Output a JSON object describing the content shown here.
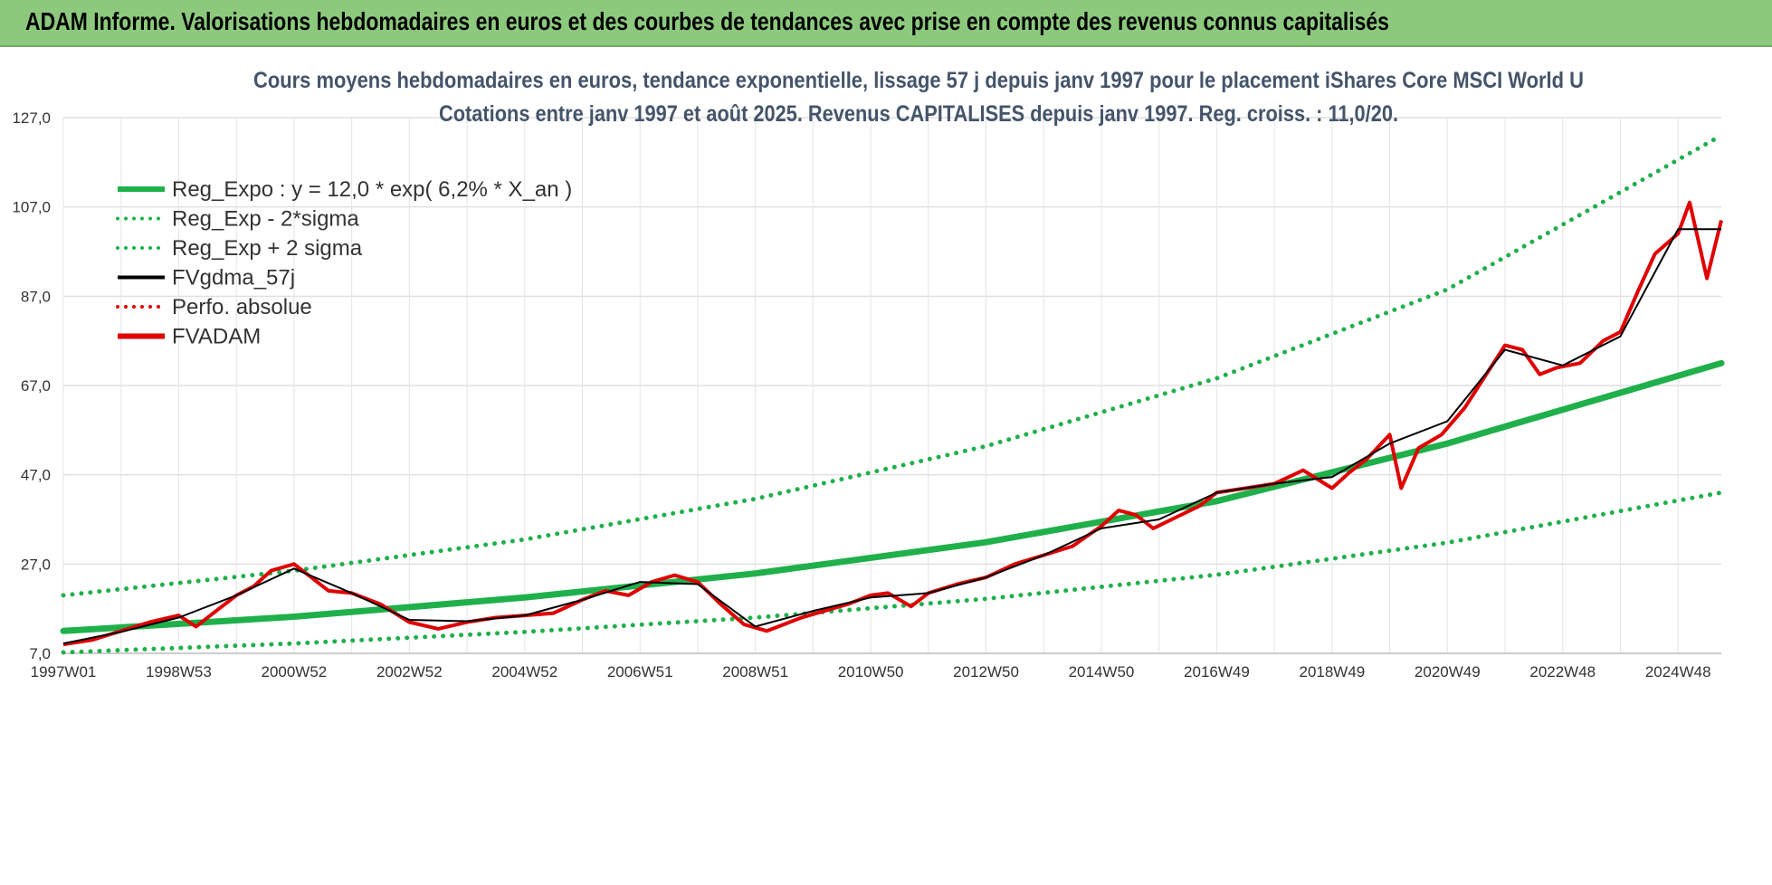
{
  "banner": {
    "title": "ADAM Informe. Valorisations hebdomadaires en euros et des courbes de tendances avec prise en compte des revenus connus capitalisés"
  },
  "colors": {
    "banner_bg": "#8cc97d",
    "trend": "#1fb04b",
    "band": "#1fb04b",
    "fvgdma": "#000000",
    "perfo": "#e00000",
    "fvadam": "#e00000",
    "title_text": "#44546a"
  },
  "chart_data": {
    "type": "line",
    "title_lines": [
      "Cours moyens hebdomadaires en euros, tendance exponentielle, lissage 57 j depuis janv 1997 pour le placement iShares Core MSCI World U",
      "Cotations entre janv 1997 et août 2025. Revenus CAPITALISES depuis janv 1997. Reg. croiss. : 11,0/20."
    ],
    "x_range": [
      1997.0,
      2025.75
    ],
    "ylim": [
      7.0,
      127.0
    ],
    "y_ticks": [
      "7,0",
      "27,0",
      "47,0",
      "67,0",
      "87,0",
      "107,0",
      "127,0"
    ],
    "y_tick_values": [
      7,
      27,
      47,
      67,
      87,
      107,
      127
    ],
    "x_ticks": [
      {
        "label": "1997W01",
        "x": 1997.0
      },
      {
        "label": "1998W53",
        "x": 1999.0
      },
      {
        "label": "2000W52",
        "x": 2001.0
      },
      {
        "label": "2002W52",
        "x": 2003.0
      },
      {
        "label": "2004W52",
        "x": 2005.0
      },
      {
        "label": "2006W51",
        "x": 2007.0
      },
      {
        "label": "2008W51",
        "x": 2009.0
      },
      {
        "label": "2010W50",
        "x": 2011.0
      },
      {
        "label": "2012W50",
        "x": 2013.0
      },
      {
        "label": "2014W50",
        "x": 2015.0
      },
      {
        "label": "2016W49",
        "x": 2017.0
      },
      {
        "label": "2018W49",
        "x": 2019.0
      },
      {
        "label": "2020W49",
        "x": 2021.0
      },
      {
        "label": "2022W48",
        "x": 2023.0
      },
      {
        "label": "2024W48",
        "x": 2025.0
      }
    ],
    "legend": [
      {
        "label": "Reg_Expo : y = 12,0 * exp( 6,2% *  X_an )",
        "style": "solid-thick",
        "color": "#1fb04b"
      },
      {
        "label": "Reg_Exp - 2*sigma",
        "style": "dotted",
        "color": "#1fb04b"
      },
      {
        "label": "Reg_Exp + 2 sigma",
        "style": "dotted",
        "color": "#1fb04b"
      },
      {
        "label": "FVgdma_57j",
        "style": "solid",
        "color": "#000000"
      },
      {
        "label": "Perfo. absolue",
        "style": "dotted",
        "color": "#e00000"
      },
      {
        "label": "FVADAM",
        "style": "solid-thick",
        "color": "#e00000"
      }
    ],
    "series": [
      {
        "id": "reg_expo",
        "x": [
          1997.0,
          2001.0,
          2005.0,
          2009.0,
          2013.0,
          2017.0,
          2021.0,
          2025.75
        ],
        "values": [
          12.0,
          15.2,
          19.5,
          24.9,
          31.9,
          41.1,
          54.0,
          72.0
        ]
      },
      {
        "id": "reg_minus",
        "x": [
          1997.0,
          2001.0,
          2005.0,
          2009.0,
          2013.0,
          2017.0,
          2021.0,
          2025.75
        ],
        "values": [
          7.2,
          9.2,
          11.8,
          15.0,
          19.2,
          24.6,
          31.8,
          43.0
        ]
      },
      {
        "id": "reg_plus",
        "x": [
          1997.0,
          2001.0,
          2005.0,
          2009.0,
          2013.0,
          2017.0,
          2021.0,
          2025.75
        ],
        "values": [
          20.0,
          25.5,
          32.5,
          41.6,
          53.4,
          68.6,
          88.5,
          123.0
        ]
      },
      {
        "id": "fvadam",
        "x": [
          1997.0,
          1997.5,
          1998.0,
          1998.5,
          1999.0,
          1999.3,
          1999.7,
          2000.0,
          2000.3,
          2000.6,
          2001.0,
          2001.3,
          2001.6,
          2002.0,
          2002.5,
          2003.0,
          2003.5,
          2004.0,
          2004.5,
          2005.0,
          2005.5,
          2006.0,
          2006.4,
          2006.8,
          2007.2,
          2007.6,
          2008.0,
          2008.4,
          2008.8,
          2009.2,
          2009.5,
          2009.8,
          2010.2,
          2010.6,
          2011.0,
          2011.3,
          2011.7,
          2012.0,
          2012.5,
          2013.0,
          2013.5,
          2014.0,
          2014.5,
          2015.0,
          2015.3,
          2015.6,
          2015.9,
          2016.3,
          2016.7,
          2017.0,
          2017.5,
          2018.0,
          2018.5,
          2019.0,
          2019.3,
          2019.6,
          2020.0,
          2020.2,
          2020.5,
          2020.9,
          2021.3,
          2021.7,
          2022.0,
          2022.3,
          2022.6,
          2022.9,
          2023.3,
          2023.7,
          2024.0,
          2024.3,
          2024.6,
          2025.0,
          2025.2,
          2025.5,
          2025.75
        ],
        "values": [
          9.0,
          10.0,
          12.0,
          14.0,
          15.5,
          13.0,
          17.0,
          20.0,
          22.0,
          25.5,
          27.0,
          24.0,
          21.0,
          20.5,
          18.0,
          14.0,
          12.5,
          14.0,
          15.0,
          15.5,
          16.0,
          19.0,
          21.0,
          20.0,
          23.0,
          24.5,
          23.0,
          18.0,
          13.5,
          12.0,
          13.5,
          15.0,
          16.5,
          18.0,
          20.0,
          20.5,
          17.5,
          20.5,
          22.5,
          24.0,
          27.0,
          29.0,
          31.0,
          35.5,
          39.0,
          38.0,
          35.0,
          37.5,
          40.0,
          43.0,
          44.0,
          45.0,
          48.0,
          44.0,
          47.5,
          50.5,
          56.0,
          44.0,
          53.0,
          56.0,
          62.0,
          70.0,
          76.0,
          75.0,
          69.5,
          71.0,
          72.0,
          77.0,
          79.0,
          88.0,
          96.5,
          101.0,
          108.0,
          91.0,
          104.0
        ]
      },
      {
        "id": "fvgdma",
        "x": [
          1997.0,
          1998.0,
          1999.0,
          2000.0,
          2001.0,
          2002.0,
          2003.0,
          2004.0,
          2005.0,
          2006.0,
          2007.0,
          2008.0,
          2009.0,
          2010.0,
          2011.0,
          2012.0,
          2013.0,
          2014.0,
          2015.0,
          2016.0,
          2017.0,
          2018.0,
          2019.0,
          2020.0,
          2021.0,
          2022.0,
          2023.0,
          2024.0,
          2025.0,
          2025.75
        ],
        "values": [
          9.2,
          11.8,
          15.0,
          20.0,
          26.0,
          20.5,
          14.5,
          14.2,
          15.5,
          19.0,
          23.0,
          22.5,
          13.0,
          16.5,
          19.5,
          20.5,
          24.0,
          29.0,
          35.0,
          37.0,
          43.0,
          45.0,
          46.5,
          54.0,
          59.0,
          75.0,
          71.5,
          78.0,
          102.0,
          102.0
        ]
      }
    ]
  }
}
